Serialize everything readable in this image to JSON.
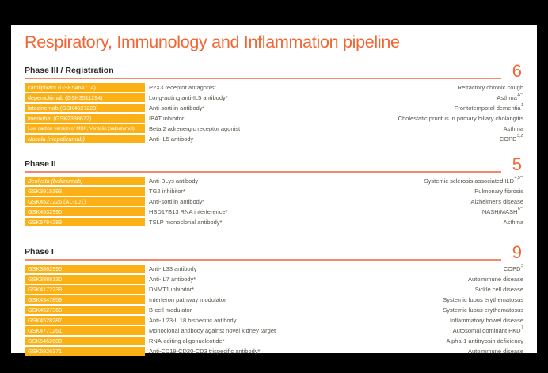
{
  "slide": {
    "title": "Respiratory, Immunology and Inflammation pipeline",
    "colors": {
      "background": "#000000",
      "slide_bg": "#FFFFFF",
      "accent_orange": "#F36633",
      "divider_orange": "#F4886B",
      "highlight_amber": "#FBB015",
      "body_text": "#565249",
      "header_text": "#2D2926",
      "drug_text": "#FFFFFF"
    },
    "sections": [
      {
        "label": "Phase III / Registration",
        "count": "6",
        "rows": [
          {
            "drug": "camlipixant (GSK5464714)",
            "mechanism": "P2X3 receptor antagonist",
            "indication": "Refractory chronic cough",
            "indication_sup": ""
          },
          {
            "drug": "depemokimab (GSK3511294)",
            "mechanism": "Long-acting anti-IL5 antibody*",
            "indication": "Asthma",
            "indication_sup": "Δ**"
          },
          {
            "drug": "latozinemab (GSK4527223)",
            "mechanism": "Anti-sortilin antibody*",
            "indication": "Frontotemporal dementia",
            "indication_sup": "1"
          },
          {
            "drug": "linerixibat (GSK2330672)",
            "mechanism": "IBAT inhibitor",
            "indication": "Cholestatic pruritus in primary biliary cholangitis",
            "indication_sup": ""
          },
          {
            "drug": "Low carbon version of MDI², Ventolin (salbutamol)",
            "mechanism": "Beta 2 adrenergic receptor agonist",
            "indication": "Asthma",
            "indication_sup": ""
          },
          {
            "drug": "Nucala (mepolizumab)",
            "drug_italic": true,
            "mechanism": "Anti-IL5 antibody",
            "indication": "COPD",
            "indication_sup": "3,Δ"
          }
        ]
      },
      {
        "label": "Phase II",
        "count": "5",
        "rows": [
          {
            "drug": "Benlysta (belimumab)",
            "drug_italic": true,
            "mechanism": "Anti-BLys antibody",
            "indication": "Systemic sclerosis associated ILD",
            "indication_sup": "4,5**"
          },
          {
            "drug": "GSK3915393",
            "mechanism": "TG2 inhibitor*",
            "indication": "Pulmonary fibrosis",
            "indication_sup": ""
          },
          {
            "drug": "GSK4527226 (AL-101)",
            "mechanism": "Anti-sortilin antibody*",
            "indication": "Alzheimer's disease",
            "indication_sup": ""
          },
          {
            "drug": "GSK4532990",
            "mechanism": "HSD17B13 RNA interference*",
            "indication": "NASH/MASH",
            "indication_sup": "6**"
          },
          {
            "drug": "GSK5784283",
            "mechanism": "TSLP monoclonal antibody*",
            "indication": "Asthma",
            "indication_sup": ""
          }
        ]
      },
      {
        "label": "Phase I",
        "count": "9",
        "rows": [
          {
            "drug": "GSK3862995",
            "mechanism": "Anti-IL33 antibody",
            "indication": "COPD",
            "indication_sup": "3"
          },
          {
            "drug": "GSK3888130",
            "mechanism": "Anti-IL7 antibody*",
            "indication": "Autoimmune disease",
            "indication_sup": ""
          },
          {
            "drug": "GSK4172239",
            "mechanism": "DNMT1 inhibitor*",
            "indication": "Sickle cell disease",
            "indication_sup": ""
          },
          {
            "drug": "GSK4347859",
            "mechanism": "Interferon pathway modulator",
            "indication": "Systemic lupus erythematosus",
            "indication_sup": ""
          },
          {
            "drug": "GSK4527363",
            "mechanism": "B-cell modulator",
            "indication": "Systemic lupus erythematosus",
            "indication_sup": ""
          },
          {
            "drug": "GSK4528287",
            "mechanism": "Anti-IL23-IL18 bispecific antibody",
            "indication": "Inflammatory bowel disease",
            "indication_sup": ""
          },
          {
            "drug": "GSK4771261",
            "mechanism": "Monoclonal antibody against novel kidney target",
            "indication": "Autosomal dominant PKD",
            "indication_sup": "7"
          },
          {
            "drug": "GSK5462688",
            "mechanism": "RNA-editing oligonucleotide*",
            "indication": "Alpha-1 antitrypsin deficiency",
            "indication_sup": ""
          },
          {
            "drug": "GSK5926371",
            "mechanism": "Anti-CD19-CD20-CD3 trispecific antibody*",
            "indication": "Autoimmune disease",
            "indication_sup": ""
          }
        ]
      }
    ]
  }
}
